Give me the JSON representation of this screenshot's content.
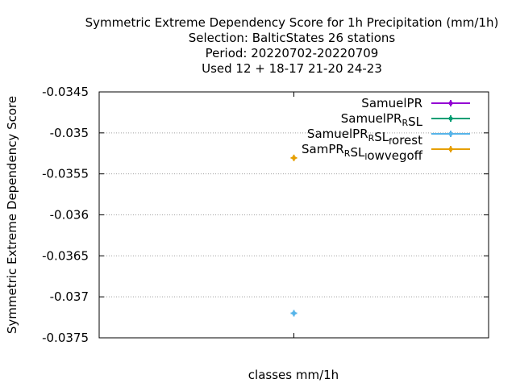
{
  "chart_data": {
    "type": "scatter",
    "title_lines": [
      "Symmetric Extreme Dependency Score  for 1h Precipitation (mm/1h)",
      "Selection: BalticStates     26 stations",
      "Period: 20220702-20220709",
      "Used  12 + 18-17 21-20 24-23"
    ],
    "xlabel": "classes mm/1h",
    "ylabel": "Symmetric Extreme Dependency Score",
    "ylim": [
      -0.0375,
      -0.0345
    ],
    "yticks": [
      -0.0345,
      -0.035,
      -0.0355,
      -0.036,
      -0.0365,
      -0.037,
      -0.0375
    ],
    "ytick_labels": [
      "-0.0345",
      "-0.035",
      "-0.0355",
      "-0.036",
      "-0.0365",
      "-0.037",
      "-0.0375"
    ],
    "grid": true,
    "legend_position": "top-right",
    "series": [
      {
        "name": "SamuelPR",
        "name_parts": [
          [
            "SamuelPR",
            "n"
          ]
        ],
        "color": "#9400d3",
        "style": "line",
        "points": []
      },
      {
        "name": "SamuelPR_RSL",
        "name_parts": [
          [
            "SamuelPR",
            "n"
          ],
          [
            "R",
            "sub"
          ],
          [
            "SL",
            "n"
          ]
        ],
        "color": "#009e73",
        "style": "line",
        "points": []
      },
      {
        "name": "SamuelPR_RSL_forest",
        "name_parts": [
          [
            "SamuelPR",
            "n"
          ],
          [
            "R",
            "sub"
          ],
          [
            "SL",
            "n"
          ],
          [
            "f",
            "sub"
          ],
          [
            "orest",
            "n"
          ]
        ],
        "color": "#56b4e9",
        "style": "line",
        "points": [
          [
            0,
            -0.0372
          ]
        ]
      },
      {
        "name": "SamPR_RSL_lowvegoff",
        "name_parts": [
          [
            "SamPR",
            "n"
          ],
          [
            "R",
            "sub"
          ],
          [
            "SL",
            "n"
          ],
          [
            "l",
            "sub"
          ],
          [
            "owvegoff",
            "n"
          ]
        ],
        "color": "#e69f00",
        "style": "line",
        "points": []
      }
    ],
    "extra_markers": [
      {
        "color": "#e69f00",
        "x": 0,
        "y": -0.035
      }
    ]
  }
}
